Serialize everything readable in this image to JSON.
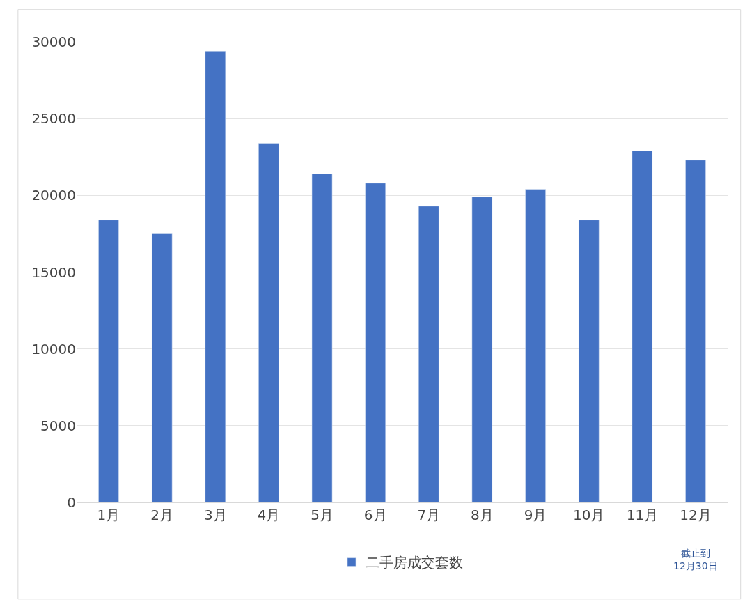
{
  "chart_data": {
    "type": "bar",
    "categories": [
      "1月",
      "2月",
      "3月",
      "4月",
      "5月",
      "6月",
      "7月",
      "8月",
      "9月",
      "10月",
      "11月",
      "12月"
    ],
    "series": [
      {
        "name": "二手房成交套数",
        "color": "#4472c4",
        "values": [
          18400,
          17500,
          29400,
          23400,
          21400,
          20800,
          19300,
          19900,
          20400,
          18400,
          22900,
          22300
        ]
      }
    ],
    "ylim": [
      0,
      30000
    ],
    "yticks": [
      0,
      5000,
      10000,
      15000,
      20000,
      25000,
      30000
    ],
    "grid": "y",
    "legend": "bottom",
    "annotations": [
      "截止到\n12月30日"
    ]
  }
}
